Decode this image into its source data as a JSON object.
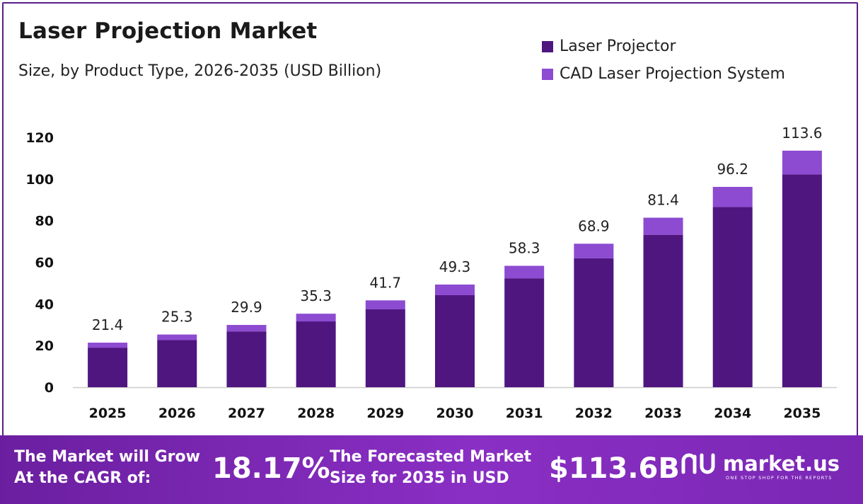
{
  "title": "Laser Projection Market",
  "subtitle": "Size, by Product Type, 2026-2035 (USD Billion)",
  "legend": [
    "Laser Projector",
    "CAD Laser Projection System"
  ],
  "colors": {
    "series1": "#4f1680",
    "series2": "#8c4bd1",
    "axis": "#cccccc",
    "footer": "#7a27b4"
  },
  "chart_data": {
    "type": "bar",
    "stacked": true,
    "categories": [
      "2025",
      "2026",
      "2027",
      "2028",
      "2029",
      "2030",
      "2031",
      "2032",
      "2033",
      "2034",
      "2035"
    ],
    "series": [
      {
        "name": "Laser Projector",
        "values": [
          19.0,
          22.6,
          26.8,
          31.6,
          37.4,
          44.2,
          52.3,
          61.9,
          73.2,
          86.5,
          102.2
        ]
      },
      {
        "name": "CAD Laser Projection System",
        "values": [
          2.4,
          2.7,
          3.1,
          3.7,
          4.3,
          5.1,
          6.0,
          7.0,
          8.2,
          9.7,
          11.4
        ]
      }
    ],
    "totals": [
      "21.4",
      "25.3",
      "29.9",
      "35.3",
      "41.7",
      "49.3",
      "58.3",
      "68.9",
      "81.4",
      "96.2",
      "113.6"
    ],
    "yticks": [
      0,
      20,
      40,
      60,
      80,
      100,
      120
    ],
    "ylim": [
      0,
      120
    ],
    "grid": false,
    "legend_position": "top-right"
  },
  "footer": {
    "cagr_text_1": "The Market will Grow",
    "cagr_text_2": "At the CAGR of:",
    "cagr_value": "18.17%",
    "forecast_text_1": "The Forecasted Market",
    "forecast_text_2": "Size for 2035 in USD",
    "forecast_value": "$113.6B",
    "brand_name": "market.us",
    "brand_tagline": "ONE STOP SHOP FOR THE REPORTS"
  }
}
